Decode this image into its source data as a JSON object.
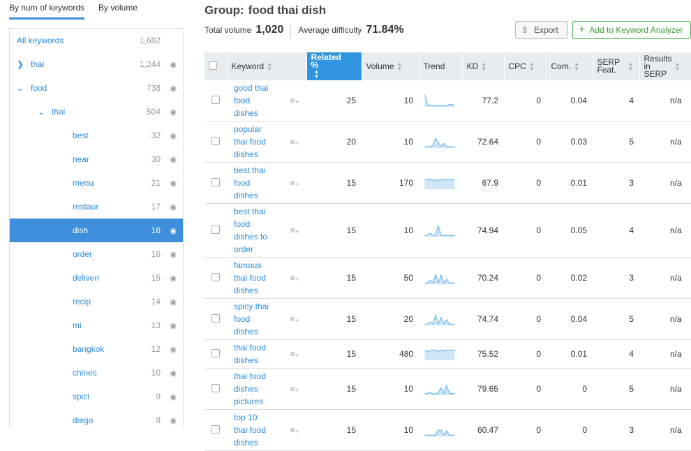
{
  "tabs": [
    "By num of keywords",
    "By volume"
  ],
  "tree": [
    {
      "label": "All keywords",
      "count": "1,682",
      "level": 0,
      "chevron": "",
      "eye": false
    },
    {
      "label": "thai",
      "count": "1,244",
      "level": 0,
      "chevron": "right",
      "eye": true
    },
    {
      "label": "food",
      "count": "738",
      "level": 0,
      "chevron": "down",
      "eye": true
    },
    {
      "label": "thai",
      "count": "504",
      "level": 1,
      "chevron": "down",
      "eye": true
    },
    {
      "label": "best",
      "count": "32",
      "level": 2,
      "eye": true
    },
    {
      "label": "near",
      "count": "30",
      "level": 2,
      "eye": true
    },
    {
      "label": "menu",
      "count": "21",
      "level": 2,
      "eye": true
    },
    {
      "label": "restaur",
      "count": "17",
      "level": 2,
      "eye": true
    },
    {
      "label": "dish",
      "count": "16",
      "level": 2,
      "eye": true,
      "selected": true
    },
    {
      "label": "order",
      "count": "16",
      "level": 2,
      "eye": true
    },
    {
      "label": "deliveri",
      "count": "15",
      "level": 2,
      "eye": true
    },
    {
      "label": "recip",
      "count": "14",
      "level": 2,
      "eye": true
    },
    {
      "label": "mi",
      "count": "13",
      "level": 2,
      "eye": true
    },
    {
      "label": "bangkok",
      "count": "12",
      "level": 2,
      "eye": true
    },
    {
      "label": "chines",
      "count": "10",
      "level": 2,
      "eye": true
    },
    {
      "label": "spici",
      "count": "9",
      "level": 2,
      "eye": true
    },
    {
      "label": "diego",
      "count": "8",
      "level": 2,
      "eye": true
    }
  ],
  "group": {
    "label": "Group:",
    "name": "food thai dish"
  },
  "stats": {
    "total_label": "Total volume",
    "total": "1,020",
    "diff_label": "Average difficulty",
    "diff": "71.84%"
  },
  "buttons": {
    "export": "Export",
    "add": "Add to Keyword Analyzer"
  },
  "columns": [
    "Keyword",
    "Related %",
    "Volume",
    "Trend",
    "KD",
    "CPC",
    "Com.",
    "SERP Feat.",
    "Results in SERP"
  ],
  "accent": "#2f95e0",
  "rows": [
    {
      "kw": [
        "good thai",
        "food",
        "dishes"
      ],
      "rel": "25",
      "vol": "10",
      "kd": "77.2",
      "cpc": "0",
      "com": "0.04",
      "serp": "4",
      "res": "n/a",
      "trend": [
        100,
        20,
        5,
        5,
        5,
        5,
        5,
        5,
        5,
        15,
        15,
        5
      ]
    },
    {
      "kw": [
        "popular",
        "thai food",
        "dishes"
      ],
      "rel": "20",
      "vol": "10",
      "kd": "72.64",
      "cpc": "0",
      "com": "0.03",
      "serp": "5",
      "res": "n/a",
      "trend": [
        5,
        5,
        5,
        20,
        80,
        40,
        10,
        35,
        5,
        5,
        5,
        5
      ]
    },
    {
      "kw": [
        "best thai",
        "food",
        "dishes"
      ],
      "rel": "15",
      "vol": "170",
      "kd": "67.9",
      "cpc": "0",
      "com": "0.01",
      "serp": "3",
      "res": "n/a",
      "trend": [
        75,
        80,
        85,
        75,
        75,
        75,
        75,
        85,
        75,
        85,
        75,
        80
      ]
    },
    {
      "kw": [
        "best thai",
        "food",
        "dishes to",
        "order"
      ],
      "rel": "15",
      "vol": "10",
      "kd": "74.94",
      "cpc": "0",
      "com": "0.05",
      "serp": "4",
      "res": "n/a",
      "trend": [
        5,
        10,
        25,
        5,
        10,
        90,
        5,
        5,
        5,
        5,
        5,
        5
      ]
    },
    {
      "kw": [
        "famous",
        "thai food",
        "dishes"
      ],
      "rel": "15",
      "vol": "50",
      "kd": "70.24",
      "cpc": "0",
      "com": "0.02",
      "serp": "3",
      "res": "n/a",
      "trend": [
        5,
        5,
        30,
        5,
        80,
        5,
        75,
        5,
        40,
        5,
        5,
        5
      ]
    },
    {
      "kw": [
        "spicy thai",
        "food",
        "dishes"
      ],
      "rel": "15",
      "vol": "20",
      "kd": "74.74",
      "cpc": "0",
      "com": "0.04",
      "serp": "5",
      "res": "n/a",
      "trend": [
        5,
        5,
        25,
        5,
        85,
        5,
        65,
        5,
        45,
        5,
        5,
        5
      ]
    },
    {
      "kw": [
        "thai food",
        "dishes"
      ],
      "rel": "15",
      "vol": "480",
      "kd": "75.52",
      "cpc": "0",
      "com": "0.01",
      "serp": "4",
      "res": "n/a",
      "trend": [
        85,
        70,
        85,
        85,
        85,
        70,
        85,
        75,
        85,
        85,
        85,
        85
      ]
    },
    {
      "kw": [
        "thai food",
        "dishes",
        "pictures"
      ],
      "rel": "15",
      "vol": "10",
      "kd": "79.65",
      "cpc": "0",
      "com": "0",
      "serp": "5",
      "res": "n/a",
      "trend": [
        10,
        10,
        20,
        5,
        5,
        15,
        60,
        10,
        80,
        10,
        10,
        10
      ]
    },
    {
      "kw": [
        "top 10",
        "thai food",
        "dishes"
      ],
      "rel": "15",
      "vol": "10",
      "kd": "60.47",
      "cpc": "0",
      "com": "0",
      "serp": "3",
      "res": "n/a",
      "trend": [
        5,
        5,
        5,
        5,
        5,
        50,
        50,
        5,
        45,
        5,
        5,
        5
      ]
    }
  ]
}
